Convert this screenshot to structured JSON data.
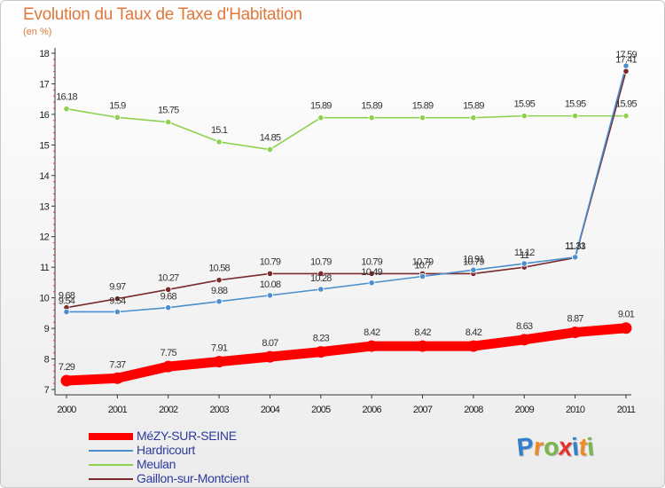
{
  "chart_data": {
    "type": "line",
    "title": "Evolution du Taux de Taxe d'Habitation",
    "subtitle": "(en %)",
    "x": [
      "2000",
      "2001",
      "2002",
      "2003",
      "2004",
      "2005",
      "2006",
      "2007",
      "2008",
      "2009",
      "2010",
      "2011"
    ],
    "ylim": [
      7,
      18
    ],
    "yticks": [
      "7",
      "8",
      "9",
      "10",
      "11",
      "12",
      "13",
      "14",
      "15",
      "16",
      "17",
      "18"
    ],
    "grid": false,
    "legend_position": "bottom-left",
    "series": [
      {
        "name": "MéZY-SUR-SEINE",
        "color": "#ff0000",
        "values": [
          7.29,
          7.37,
          7.75,
          7.91,
          8.07,
          8.23,
          8.42,
          8.42,
          8.42,
          8.63,
          8.87,
          9.01
        ],
        "labels": [
          "7.29",
          "7.37",
          "7.75",
          "7.91",
          "8.07",
          "8.23",
          "8.42",
          "8.42",
          "8.42",
          "8.63",
          "8.87",
          "9.01"
        ]
      },
      {
        "name": "Hardricourt",
        "color": "#4b8fce",
        "values": [
          9.54,
          9.54,
          9.68,
          9.88,
          10.08,
          10.28,
          10.49,
          10.7,
          10.91,
          11.12,
          11.33,
          17.59
        ],
        "labels": [
          "9.54",
          "9.54",
          "9.68",
          "9.88",
          "10.08",
          "10.28",
          "10.49",
          "10.7",
          "10.91",
          "11.12",
          "11.33",
          "17.59"
        ]
      },
      {
        "name": "Meulan",
        "color": "#8fd14f",
        "values": [
          16.18,
          15.9,
          15.75,
          15.1,
          14.85,
          15.89,
          15.89,
          15.89,
          15.89,
          15.95,
          15.95,
          15.95
        ],
        "labels": [
          "16.18",
          "15.9",
          "15.75",
          "15.1",
          "14.85",
          "15.89",
          "15.89",
          "15.89",
          "15.89",
          "15.95",
          "15.95",
          "15.95"
        ]
      },
      {
        "name": "Gaillon-sur-Montcient",
        "color": "#7a2a2a",
        "values": [
          9.68,
          9.97,
          10.27,
          10.58,
          10.79,
          10.79,
          10.79,
          10.79,
          10.79,
          11.0,
          11.31,
          17.41
        ],
        "labels": [
          "9.68",
          "9.97",
          "10.27",
          "10.58",
          "10.79",
          "10.79",
          "10.79",
          "10.79",
          "10.79",
          "11",
          "11.31",
          "17.41"
        ]
      }
    ]
  },
  "logo": {
    "letters": [
      "P",
      "r",
      "o",
      "x",
      "i",
      "t",
      "i"
    ],
    "colors": [
      "#2f7fd0",
      "#f08a24",
      "#7ab648",
      "#e5312c",
      "#2f7fd0",
      "#f08a24",
      "#7ab648"
    ]
  }
}
